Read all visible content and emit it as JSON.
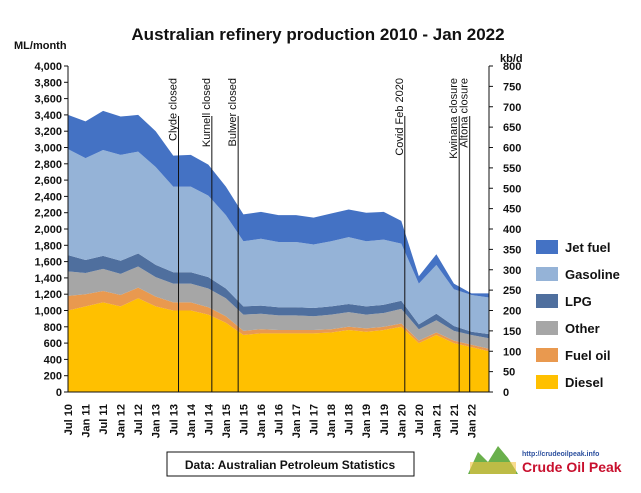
{
  "chart_data": {
    "type": "area",
    "title": "Australian refinery production 2010 - Jan 2022",
    "ylabel_left": "ML/month",
    "ylabel_right": "kb/d",
    "ylim_left": [
      0,
      4000
    ],
    "ylim_right": [
      0,
      800
    ],
    "yticks_left": [
      "0",
      "200",
      "400",
      "600",
      "800",
      "1,000",
      "1,200",
      "1,400",
      "1,600",
      "1,800",
      "2,000",
      "2,200",
      "2,400",
      "2,600",
      "2,800",
      "3,000",
      "3,200",
      "3,400",
      "3,600",
      "3,800",
      "4,000"
    ],
    "yticks_right": [
      "0",
      "50",
      "100",
      "150",
      "200",
      "250",
      "300",
      "350",
      "400",
      "450",
      "500",
      "550",
      "600",
      "650",
      "700",
      "750",
      "800"
    ],
    "x_ticks": [
      "Jul 10",
      "Jan 11",
      "Jul 11",
      "Jan 12",
      "Jul 12",
      "Jan 13",
      "Jul 13",
      "Jan 14",
      "Jul 14",
      "Jan 15",
      "Jul 15",
      "Jan 16",
      "Jul 16",
      "Jan 17",
      "Jul 17",
      "Jan 18",
      "Jul 18",
      "Jan 19",
      "Jul 19",
      "Jan 20",
      "Jul 20",
      "Jan 21",
      "Jul 21",
      "Jan 22"
    ],
    "stacking": "stacked",
    "series_order_bottom_to_top": [
      "Diesel",
      "Fuel oil",
      "Other",
      "LPG",
      "Gasoline",
      "Jet fuel"
    ],
    "series": [
      {
        "name": "Jet fuel",
        "color": "#4472c4",
        "values": [
          420,
          450,
          480,
          470,
          450,
          440,
          380,
          390,
          380,
          350,
          330,
          330,
          330,
          330,
          330,
          340,
          340,
          350,
          340,
          280,
          90,
          130,
          70,
          20,
          50
        ]
      },
      {
        "name": "Gasoline",
        "color": "#95b3d7",
        "values": [
          1300,
          1250,
          1300,
          1300,
          1250,
          1200,
          1050,
          1050,
          1000,
          900,
          800,
          820,
          800,
          800,
          780,
          800,
          820,
          800,
          800,
          700,
          500,
          600,
          450,
          450,
          450
        ]
      },
      {
        "name": "LPG",
        "color": "#4f6f9e",
        "values": [
          200,
          160,
          160,
          160,
          160,
          150,
          140,
          140,
          140,
          120,
          100,
          100,
          100,
          100,
          100,
          100,
          100,
          100,
          100,
          100,
          60,
          80,
          60,
          40,
          50
        ]
      },
      {
        "name": "Other",
        "color": "#a6a6a6",
        "values": [
          300,
          260,
          270,
          260,
          260,
          240,
          230,
          230,
          230,
          220,
          200,
          190,
          180,
          180,
          170,
          180,
          180,
          170,
          170,
          180,
          140,
          150,
          120,
          120,
          130
        ]
      },
      {
        "name": "Fuel oil",
        "color": "#e9994f",
        "values": [
          180,
          150,
          140,
          140,
          130,
          120,
          100,
          100,
          90,
          80,
          50,
          50,
          40,
          40,
          40,
          40,
          40,
          40,
          40,
          40,
          30,
          30,
          30,
          30,
          30
        ]
      },
      {
        "name": "Diesel",
        "color": "#ffc000",
        "values": [
          1000,
          1050,
          1100,
          1050,
          1150,
          1050,
          1000,
          1000,
          950,
          850,
          700,
          720,
          720,
          720,
          720,
          730,
          760,
          740,
          760,
          800,
          600,
          700,
          600,
          550,
          500
        ]
      }
    ],
    "legend_position": "right",
    "events": [
      {
        "label": "Clyde closed",
        "x_index": 6.3
      },
      {
        "label": "Kurnell closed",
        "x_index": 8.2
      },
      {
        "label": "Bulwer closed",
        "x_index": 9.7
      },
      {
        "label": "Covid Feb 2020",
        "x_index": 19.2
      },
      {
        "label": "Kwinana closure",
        "x_index": 22.3
      },
      {
        "label": "Altona closure",
        "x_index": 22.9
      }
    ],
    "source_note": "Data: Australian Petroleum Statistics",
    "brand": {
      "url": "http://crudeoilpeak.info",
      "name": "Crude Oil Peak"
    }
  }
}
